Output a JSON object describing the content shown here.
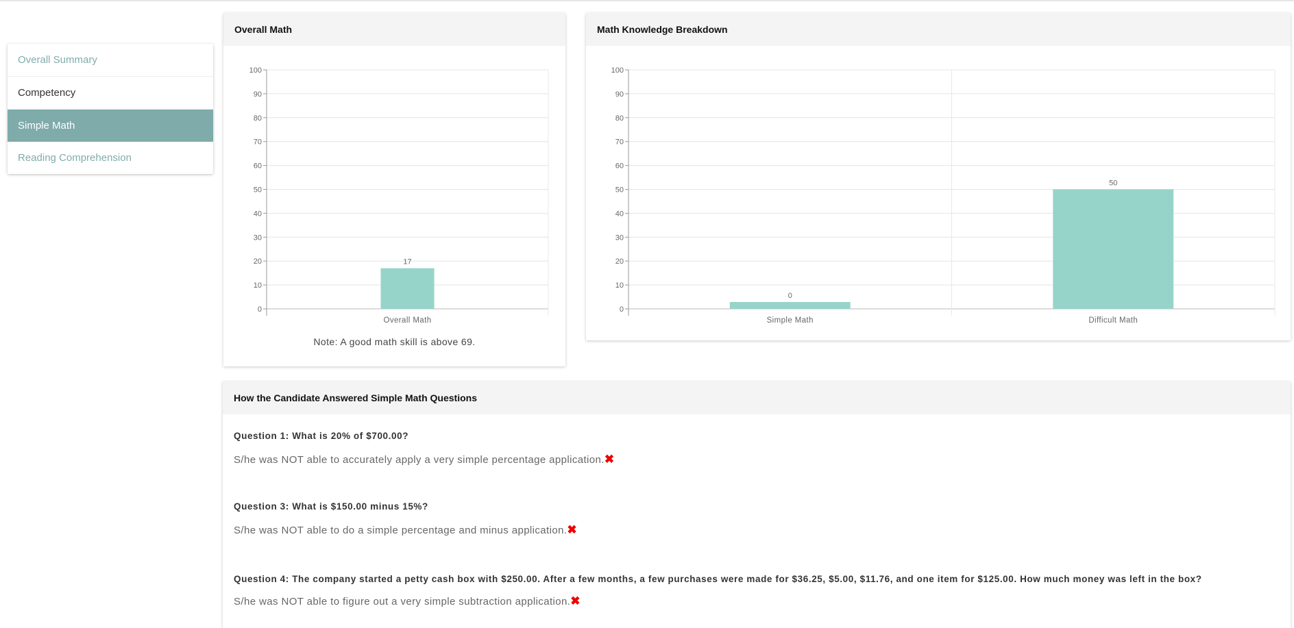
{
  "sidebar": {
    "items": [
      {
        "label": "Overall Summary"
      },
      {
        "label": "Competency"
      },
      {
        "label": "Simple Math",
        "active": true
      },
      {
        "label": "Reading Comprehension"
      }
    ]
  },
  "overall_card": {
    "title": "Overall Math",
    "note": "Note: A good math skill is above 69."
  },
  "breakdown_card": {
    "title": "Math Knowledge Breakdown"
  },
  "questions_card": {
    "title": "How the Candidate Answered Simple Math Questions",
    "items": [
      {
        "question": "Question 1: What is 20% of $700.00?",
        "answer": "S/he was NOT able to accurately apply a very simple percentage application.",
        "icon": "red-x-icon"
      },
      {
        "question": "Question 3: What is $150.00 minus 15%?",
        "answer": "S/he was NOT able to do a simple percentage and minus application.",
        "icon": "red-x-icon"
      },
      {
        "question": "Question 4: The company started a petty cash box with $250.00. After a few months, a few purchases were made for $36.25, $5.00, $11.76, and one item for $125.00. How much money was left in the box?",
        "answer": "S/he was NOT able to figure out a very simple subtraction application.",
        "icon": "red-x-icon"
      }
    ]
  },
  "colors": {
    "accent": "#7fabaa",
    "bar": "#96d4ca",
    "wrong": "#ee0000"
  },
  "chart_data": [
    {
      "type": "bar",
      "categories": [
        "Overall Math"
      ],
      "values": [
        17
      ],
      "data_labels": [
        "17"
      ],
      "ylim": [
        0,
        100
      ],
      "yticks": [
        0,
        10,
        20,
        30,
        40,
        50,
        60,
        70,
        80,
        90,
        100
      ],
      "grid": true
    },
    {
      "type": "bar",
      "categories": [
        "Simple Math",
        "Difficult Math"
      ],
      "values": [
        0,
        50
      ],
      "data_labels": [
        "0",
        "50"
      ],
      "ylim": [
        0,
        100
      ],
      "yticks": [
        0,
        10,
        20,
        30,
        40,
        50,
        60,
        70,
        80,
        90,
        100
      ],
      "grid": true
    }
  ]
}
